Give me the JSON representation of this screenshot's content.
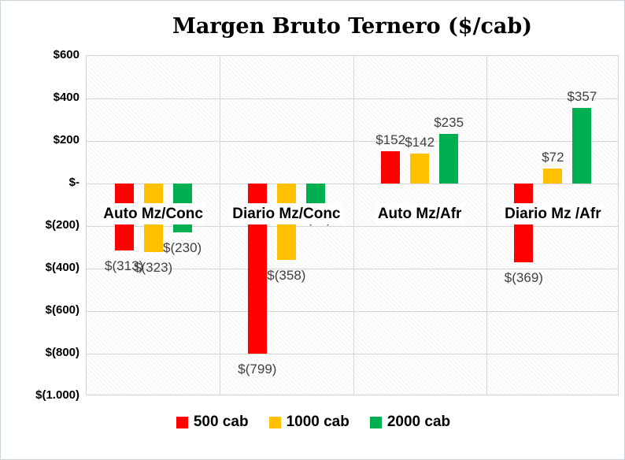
{
  "frame": {
    "background": "#ffffff",
    "border_color": "#c9d3dd"
  },
  "chart_data": {
    "type": "bar",
    "title": "Margen Bruto Ternero ($/cab)",
    "categories": [
      "Auto Mz/Conc",
      "Diario Mz/Conc",
      "Auto Mz/Afr",
      "Diario Mz /Afr"
    ],
    "series": [
      {
        "name": "500 cab",
        "color": "#ff0000",
        "values": [
          -313,
          -799,
          152,
          -369
        ],
        "labels": [
          "$(313)",
          "$(799)",
          "$152",
          "$(369)"
        ]
      },
      {
        "name": "1000 cab",
        "color": "#ffc000",
        "values": [
          -323,
          -358,
          142,
          72
        ],
        "labels": [
          "$(323)",
          "$(358)",
          "$142",
          "$72"
        ]
      },
      {
        "name": "2000 cab",
        "color": "#00b050",
        "values": [
          -230,
          -91,
          235,
          357
        ],
        "labels": [
          "$(230)",
          "$(91)",
          "$235",
          "$357"
        ]
      }
    ],
    "y_axis": {
      "min": -1000,
      "max": 600,
      "step": 200,
      "tick_labels": [
        "$600",
        "$400",
        "$200",
        "$-",
        "$(200)",
        "$(400)",
        "$(600)",
        "$(800)",
        "$(1.000)"
      ]
    },
    "legend": {
      "position": "bottom"
    },
    "grid": true,
    "plot_background": "hatched",
    "colors": {
      "gridline": "#d6d6d6",
      "data_label": "#404040",
      "axis_text": "#000000",
      "category_text": "#000000"
    }
  }
}
